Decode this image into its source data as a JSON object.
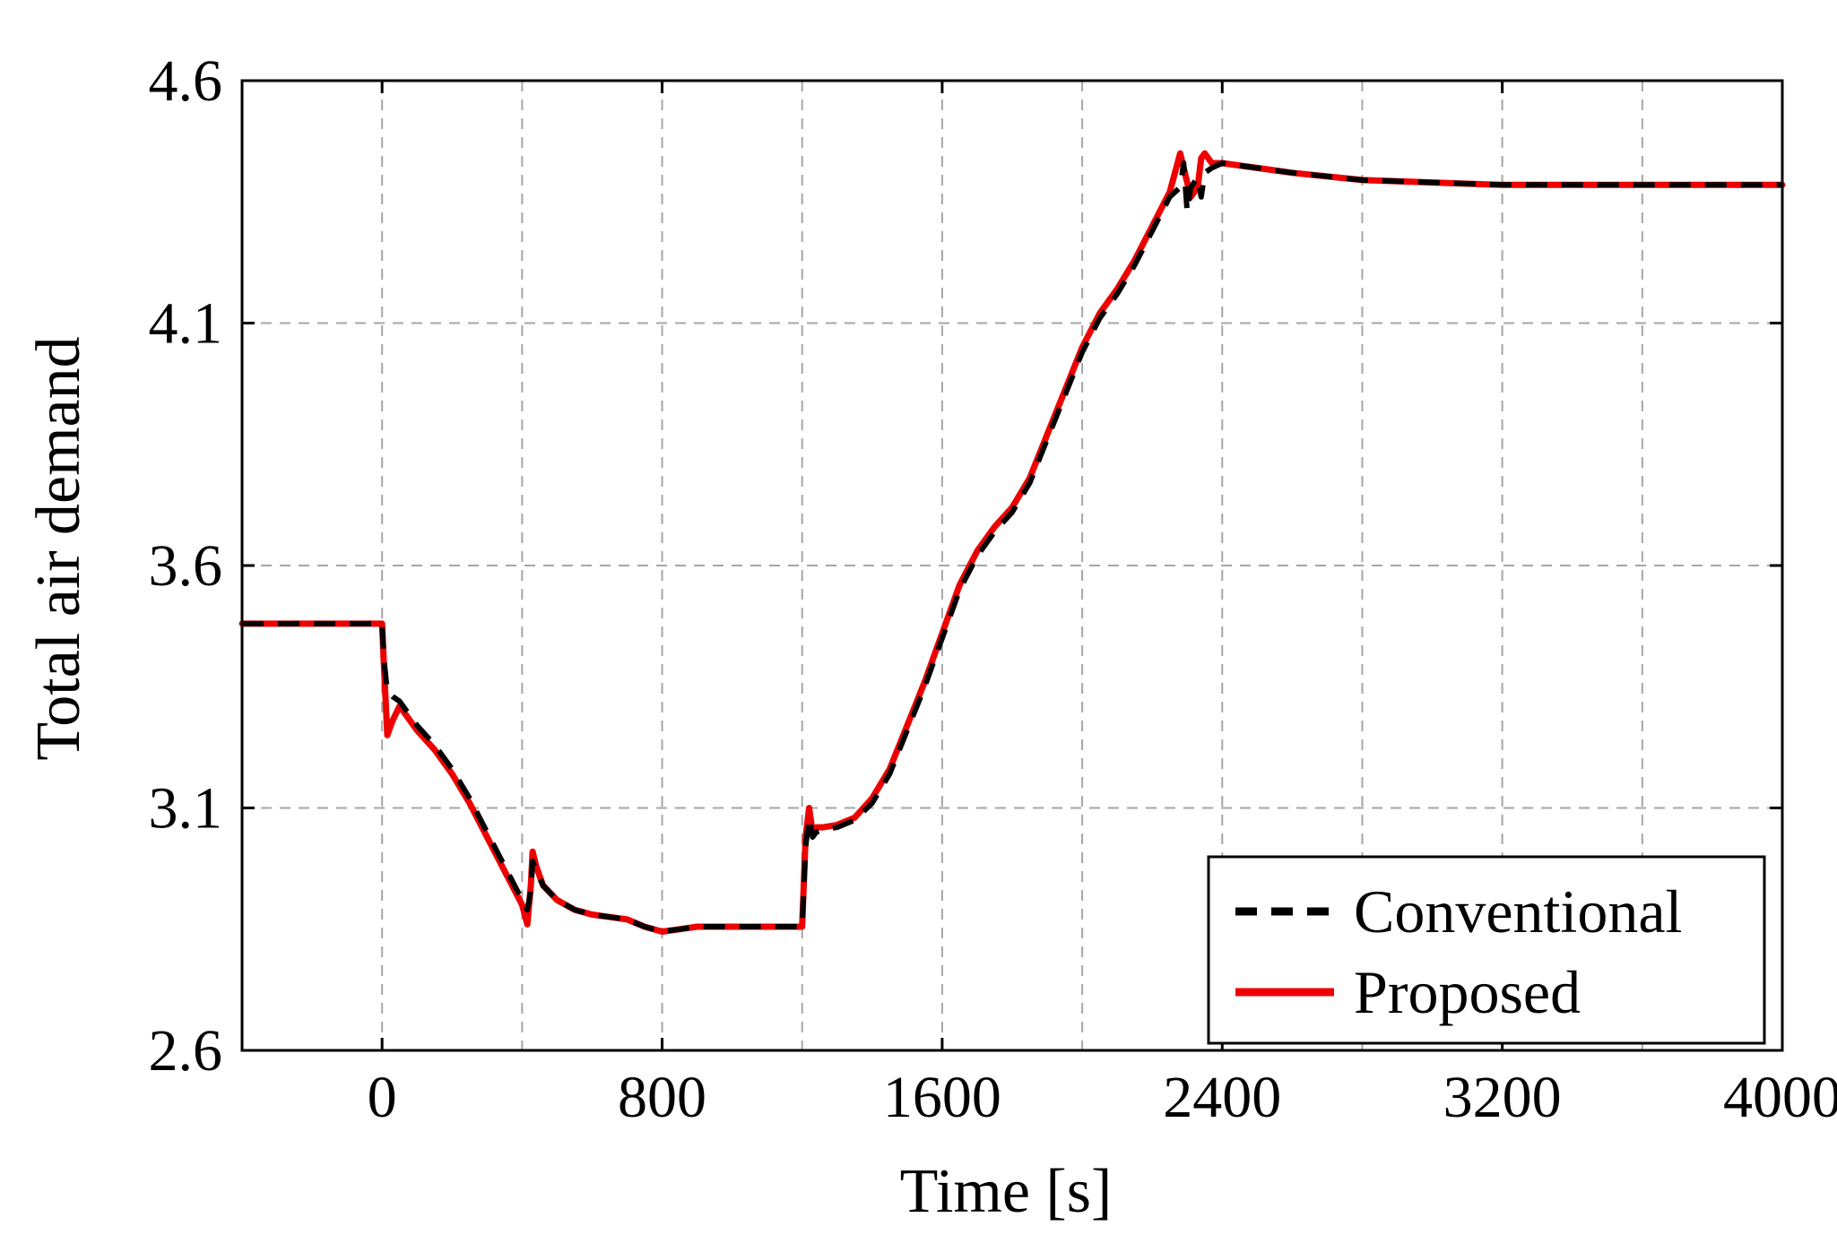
{
  "chart_data": {
    "type": "line",
    "xlabel": "Time [s]",
    "ylabel": "Total air demand",
    "xlim": [
      -400,
      4000
    ],
    "ylim": [
      2.6,
      4.6
    ],
    "xticks": [
      0,
      800,
      1600,
      2400,
      3200,
      4000
    ],
    "xtick_labels": [
      "0",
      "800",
      "1600",
      "2400",
      "3200",
      "4000"
    ],
    "yticks": [
      2.6,
      3.1,
      3.6,
      4.1,
      4.6
    ],
    "ytick_labels": [
      "2.6",
      "3.1",
      "3.6",
      "4.1",
      "4.6"
    ],
    "grid": true,
    "grid_x_positions": [
      0,
      400,
      800,
      1200,
      1600,
      2000,
      2400,
      2800,
      3200,
      3600,
      4000
    ],
    "legend_position": "bottom-right",
    "series": [
      {
        "name": "Conventional",
        "color": "#000000",
        "style": "dashed",
        "x": [
          -400,
          0,
          5,
          15,
          30,
          50,
          70,
          100,
          150,
          200,
          250,
          300,
          350,
          400,
          415,
          425,
          430,
          440,
          460,
          500,
          550,
          600,
          650,
          700,
          750,
          800,
          850,
          900,
          1000,
          1100,
          1200,
          1210,
          1220,
          1230,
          1240,
          1260,
          1300,
          1350,
          1400,
          1450,
          1500,
          1550,
          1600,
          1650,
          1700,
          1750,
          1800,
          1850,
          1900,
          1950,
          2000,
          2050,
          2100,
          2150,
          2200,
          2250,
          2280,
          2290,
          2300,
          2310,
          2330,
          2340,
          2350,
          2370,
          2400,
          2500,
          2600,
          2800,
          3000,
          3200,
          3400,
          3600,
          3800,
          4000
        ],
        "y": [
          3.48,
          3.48,
          3.41,
          3.34,
          3.33,
          3.32,
          3.3,
          3.27,
          3.23,
          3.18,
          3.12,
          3.05,
          2.98,
          2.91,
          2.89,
          2.93,
          2.99,
          2.97,
          2.94,
          2.91,
          2.89,
          2.88,
          2.875,
          2.87,
          2.855,
          2.845,
          2.85,
          2.855,
          2.855,
          2.855,
          2.855,
          3.02,
          3.08,
          3.04,
          3.05,
          3.055,
          3.06,
          3.075,
          3.11,
          3.17,
          3.26,
          3.35,
          3.45,
          3.55,
          3.62,
          3.67,
          3.71,
          3.77,
          3.86,
          3.95,
          4.04,
          4.11,
          4.16,
          4.22,
          4.29,
          4.36,
          4.38,
          4.43,
          4.33,
          4.38,
          4.4,
          4.36,
          4.41,
          4.42,
          4.43,
          4.42,
          4.41,
          4.395,
          4.39,
          4.385,
          4.385,
          4.385,
          4.385,
          4.385
        ]
      },
      {
        "name": "Proposed",
        "color": "#ee0000",
        "style": "solid",
        "x": [
          -400,
          0,
          5,
          15,
          30,
          50,
          70,
          100,
          150,
          200,
          250,
          300,
          350,
          400,
          415,
          425,
          430,
          440,
          460,
          500,
          550,
          600,
          650,
          700,
          750,
          800,
          850,
          900,
          1000,
          1100,
          1200,
          1210,
          1220,
          1230,
          1240,
          1260,
          1300,
          1350,
          1400,
          1450,
          1500,
          1550,
          1600,
          1650,
          1700,
          1750,
          1800,
          1850,
          1900,
          1950,
          2000,
          2050,
          2100,
          2150,
          2200,
          2250,
          2280,
          2290,
          2300,
          2310,
          2330,
          2340,
          2350,
          2370,
          2400,
          2500,
          2600,
          2800,
          3000,
          3200,
          3400,
          3600,
          3800,
          4000
        ],
        "y": [
          3.48,
          3.48,
          3.4,
          3.25,
          3.28,
          3.31,
          3.29,
          3.26,
          3.22,
          3.17,
          3.11,
          3.04,
          2.97,
          2.9,
          2.86,
          2.94,
          3.01,
          2.98,
          2.94,
          2.91,
          2.89,
          2.88,
          2.875,
          2.87,
          2.855,
          2.845,
          2.85,
          2.855,
          2.855,
          2.855,
          2.855,
          3.04,
          3.1,
          3.05,
          3.06,
          3.06,
          3.065,
          3.08,
          3.12,
          3.18,
          3.27,
          3.36,
          3.46,
          3.56,
          3.63,
          3.68,
          3.72,
          3.78,
          3.87,
          3.96,
          4.05,
          4.12,
          4.17,
          4.23,
          4.3,
          4.37,
          4.45,
          4.42,
          4.39,
          4.36,
          4.38,
          4.44,
          4.45,
          4.43,
          4.43,
          4.42,
          4.41,
          4.395,
          4.39,
          4.385,
          4.385,
          4.385,
          4.385,
          4.385
        ]
      }
    ]
  }
}
